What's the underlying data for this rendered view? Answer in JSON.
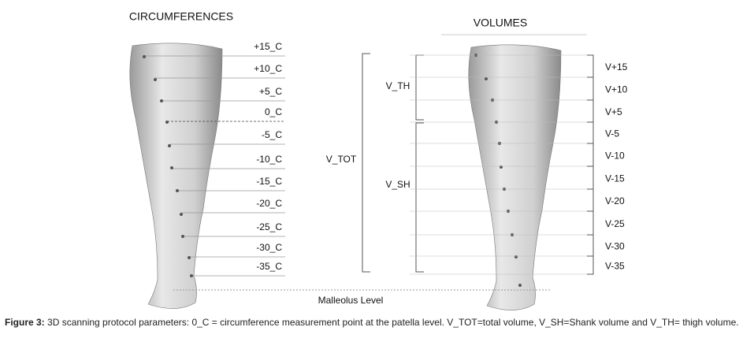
{
  "titles": {
    "circumferences": "CIRCUMFERENCES",
    "volumes": "VOLUMES"
  },
  "circumferences": [
    "+15_C",
    "+10_C",
    "+5_C",
    "0_C",
    "-5_C",
    "-10_C",
    "-15_C",
    "-20_C",
    "-25_C",
    "-30_C",
    "-35_C"
  ],
  "volumes": [
    "V+15",
    "V+10",
    "V+5",
    "V-5",
    "V-10",
    "V-15",
    "V-20",
    "V-25",
    "V-30",
    "V-35"
  ],
  "braces": {
    "total": "V_TOT",
    "thigh": "V_TH",
    "shank": "V_SH"
  },
  "malleolus": "Malleolus Level",
  "caption": {
    "label": "Figure 3:",
    "text": "3D scanning protocol parameters: 0_C = circumference measurement point at the patella level.   V_TOT=total volume, V_SH=Shank volume and V_TH= thigh volume."
  }
}
